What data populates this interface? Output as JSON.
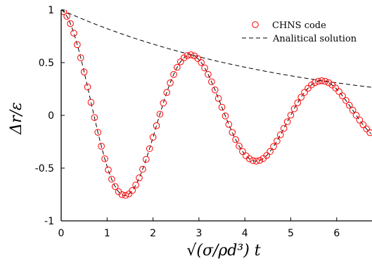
{
  "chart_data": {
    "type": "line",
    "title": "",
    "xlabel": "√(σ/ρd³) t",
    "ylabel": "Δr/ε",
    "xlim": [
      0,
      6.75
    ],
    "ylim": [
      -1,
      1
    ],
    "grid": false,
    "legend_position": "top-right",
    "x_ticks": [
      "0",
      "1",
      "2",
      "3",
      "4",
      "5",
      "6"
    ],
    "y_ticks": [
      "-1",
      "-0.5",
      "0",
      "0.5",
      "1"
    ],
    "model": {
      "amplitude_decay": 0.196,
      "angular_frequency": 2.2
    },
    "colors": {
      "markers": "#ff0000",
      "analytical": "#000000",
      "axis": "#000000"
    },
    "series": [
      {
        "name": "CHNS code",
        "style": "circle-markers",
        "source": "oscillation",
        "x_start": 0.05,
        "x_end": 6.75,
        "step": 0.075
      },
      {
        "name": "Analitical solution",
        "style": "dashed",
        "source": "oscillation",
        "x_start": 0,
        "x_end": 6.75
      },
      {
        "name": "",
        "style": "dashed",
        "source": "envelope",
        "x_start": 0,
        "x_end": 6.75
      }
    ],
    "legend": [
      "CHNS code",
      "Analitical solution"
    ]
  }
}
